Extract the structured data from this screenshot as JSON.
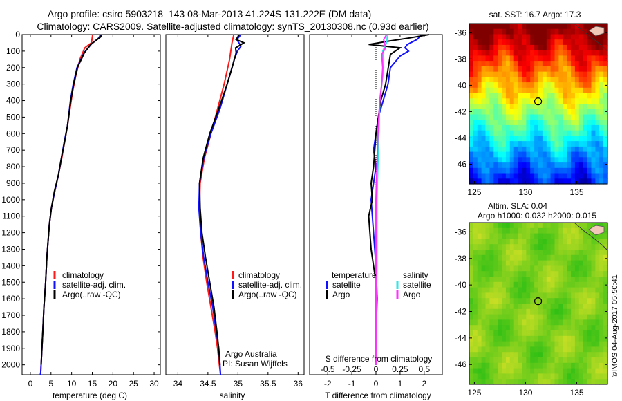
{
  "figure": {
    "title_line1": "Argo profile: csiro 5903218_143 08-Mar-2013 41.224S 131.222E (DM data)",
    "title_line2": "Climatology: CARS2009. Satellite-adjusted climatology: synTS_20130308.nc (0.93d earlier)",
    "side_stamp": "©IMOS 04-Aug-2017 05:50:41"
  },
  "colors": {
    "climatology": "#ff1a1a",
    "satellite": "#1010ff",
    "argo": "#000000",
    "salinity_satellite": "#33e6e6",
    "salinity_argo": "#ff33ff"
  },
  "legend": {
    "climatology": "climatology",
    "satellite_adj": "satellite-adj. clim.",
    "argo_raw": "Argo(..raw -QC)",
    "temperature_header": "temperature",
    "salinity_header": "salinity",
    "satellite": "satellite",
    "argo": "Argo"
  },
  "credits": {
    "line1": "Argo Australia",
    "line2": "PI: Susan Wijffels"
  },
  "maps": {
    "sst": {
      "title": "sat. SST: 16.7  Argo: 17.3",
      "colormap": "jet",
      "xticks": [
        125,
        130,
        135
      ],
      "yticks": [
        -36,
        -38,
        -40,
        -42,
        -44,
        -46
      ],
      "xlim": [
        124.5,
        138
      ],
      "ylim": [
        -47.5,
        -35.3
      ],
      "float_position": {
        "lon": 131.222,
        "lat": -41.224
      }
    },
    "sla": {
      "title_line1": "Altim. SLA: 0.04",
      "title_line2": "Argo h1000: 0.032  h2000: 0.015",
      "colormap": "green",
      "xticks": [
        125,
        130,
        135
      ],
      "yticks": [
        -36,
        -38,
        -40,
        -42,
        -44,
        -46
      ],
      "xlim": [
        124.5,
        138
      ],
      "ylim": [
        -47.5,
        -35.3
      ],
      "float_position": {
        "lon": 131.222,
        "lat": -41.224
      }
    }
  },
  "chart_data": [
    {
      "type": "line",
      "panel": "temperature",
      "xlabel": "temperature (deg C)",
      "ylabel": "",
      "xlim": [
        -2,
        31.5
      ],
      "ylim": [
        2060,
        0
      ],
      "xticks": [
        0,
        5,
        10,
        15,
        20,
        25,
        30
      ],
      "yticks": [
        0,
        100,
        200,
        300,
        400,
        500,
        600,
        700,
        800,
        900,
        1000,
        1100,
        1200,
        1300,
        1400,
        1500,
        1600,
        1700,
        1800,
        1900,
        2000
      ],
      "series": [
        {
          "name": "climatology",
          "color": "#ff1a1a",
          "x": [
            15.1,
            14.8,
            13.2,
            12.0,
            11.0,
            10.2,
            9.6,
            9.0,
            8.3,
            7.6,
            6.8,
            5.9,
            5.1,
            4.6,
            4.3,
            4.0,
            3.7,
            3.3,
            3.0,
            2.8,
            2.6,
            2.5,
            2.4
          ],
          "y": [
            0,
            50,
            80,
            150,
            250,
            350,
            450,
            550,
            650,
            750,
            850,
            950,
            1050,
            1150,
            1250,
            1350,
            1500,
            1650,
            1800,
            1900,
            2000,
            2050,
            2060
          ]
        },
        {
          "name": "satellite-adj. clim.",
          "color": "#1010ff",
          "x": [
            17.0,
            16.6,
            14.9,
            13.0,
            11.3,
            10.4,
            9.7,
            9.0,
            8.2,
            7.5,
            6.8,
            5.9,
            5.1,
            4.6,
            4.3,
            4.0,
            3.7,
            3.3,
            3.0,
            2.8,
            2.6,
            2.5,
            2.4
          ],
          "y": [
            0,
            20,
            55,
            110,
            200,
            300,
            400,
            550,
            650,
            750,
            850,
            950,
            1050,
            1150,
            1250,
            1350,
            1500,
            1650,
            1800,
            1900,
            2000,
            2050,
            2060
          ]
        },
        {
          "name": "Argo(..raw -QC)",
          "color": "#000000",
          "x": [
            17.3,
            17.0,
            14.6,
            13.1,
            11.4,
            10.5,
            9.8,
            9.0,
            8.3,
            7.5,
            6.8,
            5.8,
            5.1,
            4.6,
            4.3,
            4.0,
            3.7,
            3.3,
            3.0,
            2.8,
            2.6
          ],
          "y": [
            0,
            15,
            60,
            110,
            200,
            300,
            400,
            550,
            650,
            750,
            850,
            950,
            1050,
            1150,
            1250,
            1350,
            1500,
            1650,
            1800,
            1900,
            2000
          ]
        }
      ]
    },
    {
      "type": "line",
      "panel": "salinity",
      "xlabel": "salinity",
      "ylabel": "",
      "xlim": [
        33.8,
        36.1
      ],
      "ylim": [
        2060,
        0
      ],
      "xticks": [
        34,
        34.5,
        35,
        35.5,
        36
      ],
      "yticks": [],
      "series": [
        {
          "name": "climatology",
          "color": "#ff1a1a",
          "x": [
            34.93,
            34.9,
            34.88,
            34.86,
            34.83,
            34.77,
            34.66,
            34.55,
            34.44,
            34.37,
            34.36,
            34.38,
            34.42,
            34.48,
            34.55,
            34.62,
            34.66,
            34.69,
            34.71
          ],
          "y": [
            0,
            50,
            100,
            150,
            200,
            300,
            450,
            600,
            750,
            900,
            1050,
            1200,
            1350,
            1500,
            1650,
            1800,
            1900,
            2000,
            2060
          ]
        },
        {
          "name": "satellite-adj. clim.",
          "color": "#1010ff",
          "x": [
            35.05,
            34.98,
            35.05,
            34.99,
            34.94,
            34.9,
            34.82,
            34.7,
            34.55,
            34.43,
            34.36,
            34.35,
            34.38,
            34.43,
            34.5,
            34.58,
            34.64,
            34.68,
            34.7,
            34.71
          ],
          "y": [
            0,
            30,
            70,
            100,
            150,
            200,
            300,
            450,
            600,
            750,
            900,
            1050,
            1200,
            1350,
            1500,
            1650,
            1800,
            1900,
            2000,
            2060
          ]
        },
        {
          "name": "Argo(..raw -QC)",
          "color": "#000000",
          "x": [
            35.02,
            34.97,
            35.1,
            34.96,
            34.97,
            34.9,
            34.82,
            34.68,
            34.53,
            34.42,
            34.36,
            34.37,
            34.4,
            34.46,
            34.53,
            34.6,
            34.65,
            34.68,
            34.7
          ],
          "y": [
            0,
            30,
            50,
            80,
            110,
            200,
            300,
            450,
            600,
            750,
            900,
            1050,
            1200,
            1350,
            1500,
            1650,
            1800,
            1900,
            2000
          ]
        }
      ]
    },
    {
      "type": "line",
      "panel": "difference",
      "xlabel": "T difference from climatology",
      "xlabel_top": "S difference from climatology",
      "ylabel": "",
      "xlim": [
        -2.75,
        2.75
      ],
      "ylim": [
        2060,
        0
      ],
      "xticks": [
        -2,
        -1,
        0,
        1,
        2
      ],
      "top_xticks": [
        -0.5,
        -0.25,
        0,
        0.25,
        0.5
      ],
      "top_xlim": [
        -0.6875,
        0.6875
      ],
      "zero_line": 0,
      "series": [
        {
          "name": "satellite",
          "group": "temperature",
          "color": "#1010ff",
          "x": [
            1.9,
            1.7,
            1.3,
            1.2,
            1.35,
            1.0,
            0.6,
            0.5,
            0.3,
            0.1,
            0.0,
            -0.1,
            0.0,
            -0.2,
            -0.1,
            0.0,
            0.05,
            0.0,
            0.0
          ],
          "y": [
            0,
            30,
            60,
            80,
            100,
            130,
            200,
            300,
            400,
            500,
            600,
            700,
            800,
            1000,
            1200,
            1400,
            1600,
            1800,
            2000
          ]
        },
        {
          "name": "Argo",
          "group": "temperature",
          "color": "#000000",
          "x": [
            2.2,
            1.4,
            0.5,
            -0.3,
            1.0,
            0.6,
            0.4,
            0.2,
            0.1,
            0.0,
            -0.05,
            -0.1,
            -0.2,
            -0.15,
            -0.3,
            -0.2,
            -0.1,
            0.0,
            0.02,
            0.0
          ],
          "y": [
            0,
            20,
            40,
            60,
            80,
            120,
            300,
            400,
            500,
            600,
            700,
            800,
            900,
            1000,
            1100,
            1300,
            1400,
            1500,
            1700,
            2000
          ]
        },
        {
          "name": "satellite",
          "group": "salinity",
          "color": "#33e6e6",
          "x": [
            0.12,
            0.11,
            0.07,
            0.08,
            0.06,
            0.04,
            0.03,
            0.02,
            0.01,
            0.01,
            0.0,
            0.0
          ],
          "y": [
            0,
            50,
            100,
            200,
            300,
            400,
            600,
            800,
            1000,
            1400,
            1800,
            2000
          ]
        },
        {
          "name": "Argo",
          "group": "salinity",
          "color": "#ff33ff",
          "x": [
            0.11,
            0.08,
            0.1,
            0.06,
            0.07,
            0.06,
            0.04,
            0.02,
            0.01,
            0.0,
            0.0,
            0.0
          ],
          "y": [
            0,
            30,
            80,
            120,
            200,
            300,
            400,
            600,
            800,
            1000,
            1500,
            2000
          ]
        }
      ]
    }
  ]
}
